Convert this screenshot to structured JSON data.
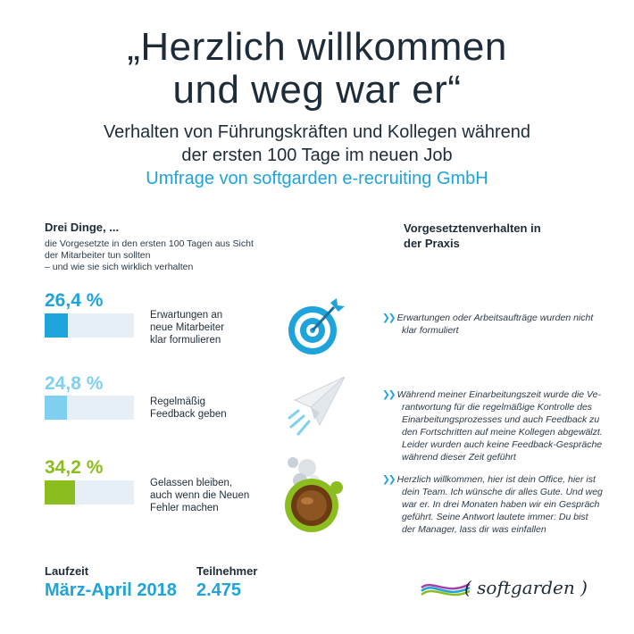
{
  "header": {
    "title_line1": "„Herzlich willkommen",
    "title_line2": "und weg war er“",
    "subtitle_line1": "Verhalten von Führungskräften und Kollegen während",
    "subtitle_line2": "der ersten 100 Tage im neuen Job",
    "survey_line": "Umfrage von softgarden e-recruiting GmbH"
  },
  "left": {
    "heading": "Drei Dinge, ...",
    "description_line1": "die Vorgesetzte in den ersten 100 Tagen aus Sicht",
    "description_line2": "der Mitarbeiter tun sollten",
    "description_line3": "– und wie sie sich wirklich verhalten"
  },
  "right": {
    "heading_line1": "Vorgesetztenverhalten in",
    "heading_line2": "der Praxis",
    "quote_mark": "❯❯",
    "quotes": [
      [
        "Erwartungen oder Arbeitsaufträge wurden nicht",
        "klar formuliert"
      ],
      [
        "Während meiner Einarbeitungszeit wurde die Ve-",
        "rantwortung für die regelmäßige Kontrolle des",
        "Einarbeitungsprozesses und auch Feedback zu",
        "den Fortschritten auf meine Kollegen abgewälzt.",
        "Leider wurden auch keine Feedback-Gespräche",
        "während dieser Zeit geführt"
      ],
      [
        "Herzlich willkommen, hier ist dein Office, hier ist",
        "dein Team. Ich wünsche dir alles Gute. Und weg",
        "war er. In drei Monaten haben wir ein Gespräch",
        "geführt. Seine Antwort lautete immer: Du bist",
        "der Manager, lass dir was einfallen"
      ]
    ]
  },
  "chart_data": {
    "type": "bar",
    "orientation": "horizontal",
    "categories": [
      "Erwartungen an neue Mitarbeiter klar formulieren",
      "Regelmäßig Feedback geben",
      "Gelassen bleiben, auch wenn die Neuen Fehler machen"
    ],
    "values": [
      26.4,
      24.8,
      34.2
    ],
    "value_labels": [
      "26,4 %",
      "24,8 %",
      "34,2 %"
    ],
    "label_lines": [
      [
        "Erwartungen an",
        "neue Mitarbeiter",
        "klar formulieren"
      ],
      [
        "Regelmäßig",
        "Feedback geben"
      ],
      [
        "Gelassen bleiben,",
        "auch wenn die Neuen",
        "Fehler machen"
      ]
    ],
    "colors": [
      "#1ea3db",
      "#7fd0f0",
      "#8bbd1f"
    ],
    "track_color": "#e6eef6",
    "xlim": [
      0,
      100
    ]
  },
  "icons": [
    "target-icon",
    "paper-plane-icon",
    "coffee-cup-icon"
  ],
  "footer": {
    "runtime_label": "Laufzeit",
    "runtime_value": "März-April 2018",
    "participants_label": "Teilnehmer",
    "participants_value": "2.475"
  },
  "logo": {
    "text": "( softgarden )"
  }
}
